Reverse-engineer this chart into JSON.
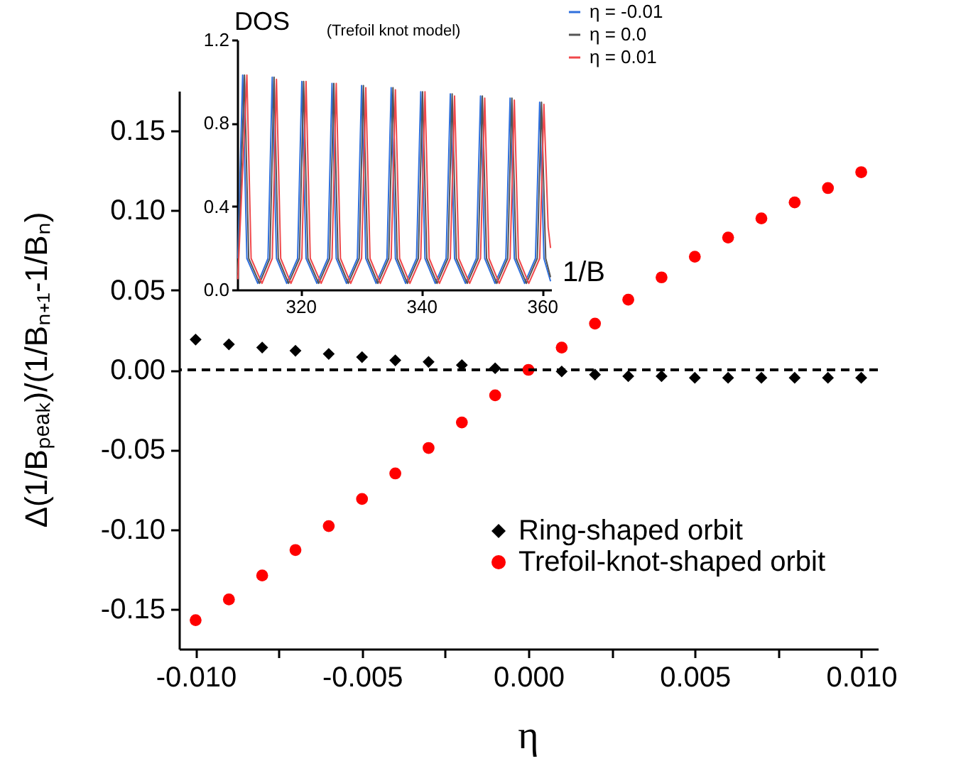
{
  "chart_data": [
    {
      "type": "scatter",
      "xlabel": "η",
      "ylabel": "Δ(1/Bₚₑₐₖ)/(1/Bₙ₊₁-1/Bₙ)",
      "x": [
        -0.01,
        -0.009,
        -0.008,
        -0.007,
        -0.006,
        -0.005,
        -0.004,
        -0.003,
        -0.002,
        -0.001,
        0.0,
        0.001,
        0.002,
        0.003,
        0.004,
        0.005,
        0.006,
        0.007,
        0.008,
        0.009,
        0.01
      ],
      "series": [
        {
          "name": "Ring-shaped orbit",
          "color": "#000000",
          "marker": "diamond",
          "values": [
            0.019,
            0.016,
            0.014,
            0.012,
            0.01,
            0.008,
            0.006,
            0.005,
            0.003,
            0.001,
            null,
            -0.001,
            -0.003,
            -0.004,
            -0.004,
            -0.005,
            -0.005,
            -0.005,
            -0.005,
            -0.005,
            -0.005
          ]
        },
        {
          "name": "Trefoil-knot-shaped orbit",
          "color": "#ff0000",
          "marker": "circle",
          "values": [
            -0.157,
            -0.144,
            -0.129,
            -0.113,
            -0.098,
            -0.081,
            -0.065,
            -0.049,
            -0.033,
            -0.016,
            0.0,
            0.014,
            0.029,
            0.044,
            0.058,
            0.071,
            0.083,
            0.095,
            0.105,
            0.114,
            0.124
          ]
        }
      ],
      "xlim": [
        -0.0105,
        0.0105
      ],
      "xticks": [
        {
          "value": -0.01,
          "label": "-0.010"
        },
        {
          "value": -0.0075,
          "label": null
        },
        {
          "value": -0.005,
          "label": "-0.005"
        },
        {
          "value": -0.0025,
          "label": null
        },
        {
          "value": 0,
          "label": "0.000"
        },
        {
          "value": 0.0025,
          "label": null
        },
        {
          "value": 0.005,
          "label": "0.005"
        },
        {
          "value": 0.0075,
          "label": null
        },
        {
          "value": 0.01,
          "label": "0.010"
        }
      ],
      "ylim": [
        -0.175,
        0.175
      ],
      "yticks": [
        {
          "value": -0.15,
          "label": "-0.15"
        },
        {
          "value": -0.1,
          "label": "-0.10"
        },
        {
          "value": -0.05,
          "label": "-0.05"
        },
        {
          "value": 0,
          "label": "0.00"
        },
        {
          "value": 0.05,
          "label": "0.05"
        },
        {
          "value": 0.1,
          "label": "0.10"
        },
        {
          "value": 0.15,
          "label": "0.15"
        }
      ],
      "ref_lines": [
        {
          "axis": "y",
          "value": 0,
          "color": "#000000",
          "line_style": "dashed"
        }
      ],
      "legend": "bottom right"
    },
    {
      "type": "line",
      "title": "(Trefoil knot model)",
      "xlabel": "1/B",
      "ylabel": "DOS",
      "series": [
        {
          "name": "η = -0.01",
          "color": "#2f6fdc",
          "x": [
            309.6,
            310.4,
            311.1,
            312.9,
            314.6,
            315.3,
            316.0,
            317.7,
            319.5,
            320.2,
            320.9,
            322.7,
            324.5,
            325.2,
            325.9,
            327.6,
            329.4,
            330.1,
            330.8,
            332.5,
            334.3,
            335.0,
            335.7,
            337.4,
            339.2,
            339.9,
            340.6,
            342.3,
            344.1,
            344.8,
            345.5,
            347.3,
            349.1,
            349.8,
            350.5,
            352.2,
            354.0,
            354.7,
            355.4,
            357.1,
            358.9,
            359.6,
            360.3,
            361.4
          ],
          "values": [
            0.15,
            1.03,
            0.15,
            0.03,
            0.15,
            1.02,
            0.15,
            0.03,
            0.15,
            1.0,
            0.15,
            0.03,
            0.15,
            0.99,
            0.15,
            0.03,
            0.15,
            0.98,
            0.15,
            0.03,
            0.15,
            0.97,
            0.15,
            0.03,
            0.15,
            0.95,
            0.15,
            0.03,
            0.15,
            0.94,
            0.15,
            0.03,
            0.15,
            0.93,
            0.15,
            0.03,
            0.15,
            0.92,
            0.15,
            0.03,
            0.15,
            0.9,
            0.15,
            0.04
          ]
        },
        {
          "name": "η =  0.0",
          "color": "#555555",
          "x": [
            309.6,
            310.7,
            311.4,
            313.2,
            314.9,
            315.6,
            316.3,
            318.0,
            319.8,
            320.5,
            321.2,
            323.0,
            324.8,
            325.5,
            326.2,
            327.9,
            329.7,
            330.4,
            331.1,
            332.8,
            334.6,
            335.3,
            336.0,
            337.7,
            339.5,
            340.2,
            340.9,
            342.6,
            344.4,
            345.1,
            345.8,
            347.6,
            349.4,
            350.1,
            350.8,
            352.5,
            354.3,
            355.0,
            355.7,
            357.4,
            359.2,
            359.9,
            360.6,
            361.4
          ],
          "values": [
            0.08,
            1.03,
            0.15,
            0.03,
            0.15,
            1.02,
            0.15,
            0.03,
            0.15,
            1.0,
            0.15,
            0.03,
            0.15,
            0.99,
            0.15,
            0.03,
            0.15,
            0.98,
            0.15,
            0.03,
            0.15,
            0.97,
            0.15,
            0.03,
            0.15,
            0.95,
            0.15,
            0.03,
            0.15,
            0.94,
            0.15,
            0.03,
            0.15,
            0.93,
            0.15,
            0.03,
            0.15,
            0.92,
            0.15,
            0.03,
            0.15,
            0.9,
            0.15,
            0.06
          ]
        },
        {
          "name": "η =  0.01",
          "color": "#f0484b",
          "x": [
            309.6,
            311.1,
            311.8,
            313.6,
            315.3,
            316.0,
            316.7,
            318.4,
            320.2,
            320.9,
            321.6,
            323.4,
            325.2,
            325.9,
            326.6,
            328.3,
            330.1,
            330.8,
            331.5,
            333.2,
            335.0,
            335.7,
            336.4,
            338.1,
            339.9,
            340.6,
            341.3,
            343.0,
            344.8,
            345.5,
            346.2,
            348.0,
            349.8,
            350.5,
            351.2,
            352.9,
            354.7,
            355.4,
            356.1,
            357.8,
            359.6,
            360.3,
            361.0,
            361.4
          ],
          "values": [
            0.05,
            1.03,
            0.15,
            0.03,
            0.15,
            1.01,
            0.15,
            0.03,
            0.15,
            1.0,
            0.15,
            0.03,
            0.15,
            0.99,
            0.15,
            0.03,
            0.15,
            0.97,
            0.15,
            0.03,
            0.15,
            0.96,
            0.15,
            0.03,
            0.15,
            0.95,
            0.15,
            0.03,
            0.15,
            0.93,
            0.15,
            0.03,
            0.15,
            0.92,
            0.15,
            0.03,
            0.15,
            0.91,
            0.15,
            0.03,
            0.15,
            0.89,
            0.3,
            0.2
          ]
        }
      ],
      "xlim": [
        309.5,
        361.5
      ],
      "xticks": [
        320,
        340,
        360
      ],
      "ylim": [
        0,
        1.2
      ],
      "yticks": [
        {
          "value": 0,
          "label": "0.0"
        },
        {
          "value": 0.4,
          "label": "0.4"
        },
        {
          "value": 0.8,
          "label": "0.8"
        },
        {
          "value": 1.2,
          "label": "1.2"
        }
      ],
      "legend": "top right"
    }
  ]
}
